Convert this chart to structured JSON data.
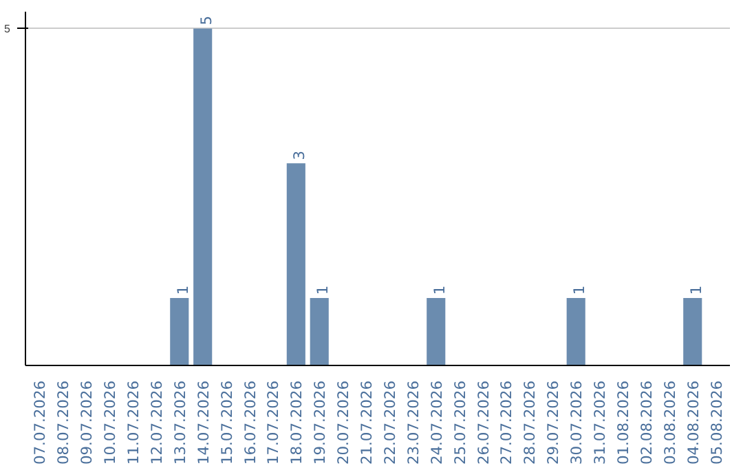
{
  "chart_data": {
    "type": "bar",
    "categories": [
      "07.07.2026",
      "08.07.2026",
      "09.07.2026",
      "10.07.2026",
      "11.07.2026",
      "12.07.2026",
      "13.07.2026",
      "14.07.2026",
      "15.07.2026",
      "16.07.2026",
      "17.07.2026",
      "18.07.2026",
      "19.07.2026",
      "20.07.2026",
      "21.07.2026",
      "22.07.2026",
      "23.07.2026",
      "24.07.2026",
      "25.07.2026",
      "26.07.2026",
      "27.07.2026",
      "28.07.2026",
      "29.07.2026",
      "30.07.2026",
      "31.07.2026",
      "01.08.2026",
      "02.08.2026",
      "03.08.2026",
      "04.08.2026",
      "05.08.2026"
    ],
    "values": [
      0,
      0,
      0,
      0,
      0,
      0,
      1,
      5,
      0,
      0,
      0,
      3,
      1,
      0,
      0,
      0,
      0,
      1,
      0,
      0,
      0,
      0,
      0,
      1,
      0,
      0,
      0,
      0,
      1,
      0
    ],
    "value_labels": [
      null,
      null,
      null,
      null,
      null,
      null,
      "1",
      "5",
      null,
      null,
      null,
      "3",
      "1",
      null,
      null,
      null,
      null,
      "1",
      null,
      null,
      null,
      null,
      null,
      "1",
      null,
      null,
      null,
      null,
      "1",
      null
    ],
    "color": "#6b8caf",
    "ylim": [
      0,
      5.25
    ],
    "yticks": [
      5
    ],
    "grid": "y"
  }
}
